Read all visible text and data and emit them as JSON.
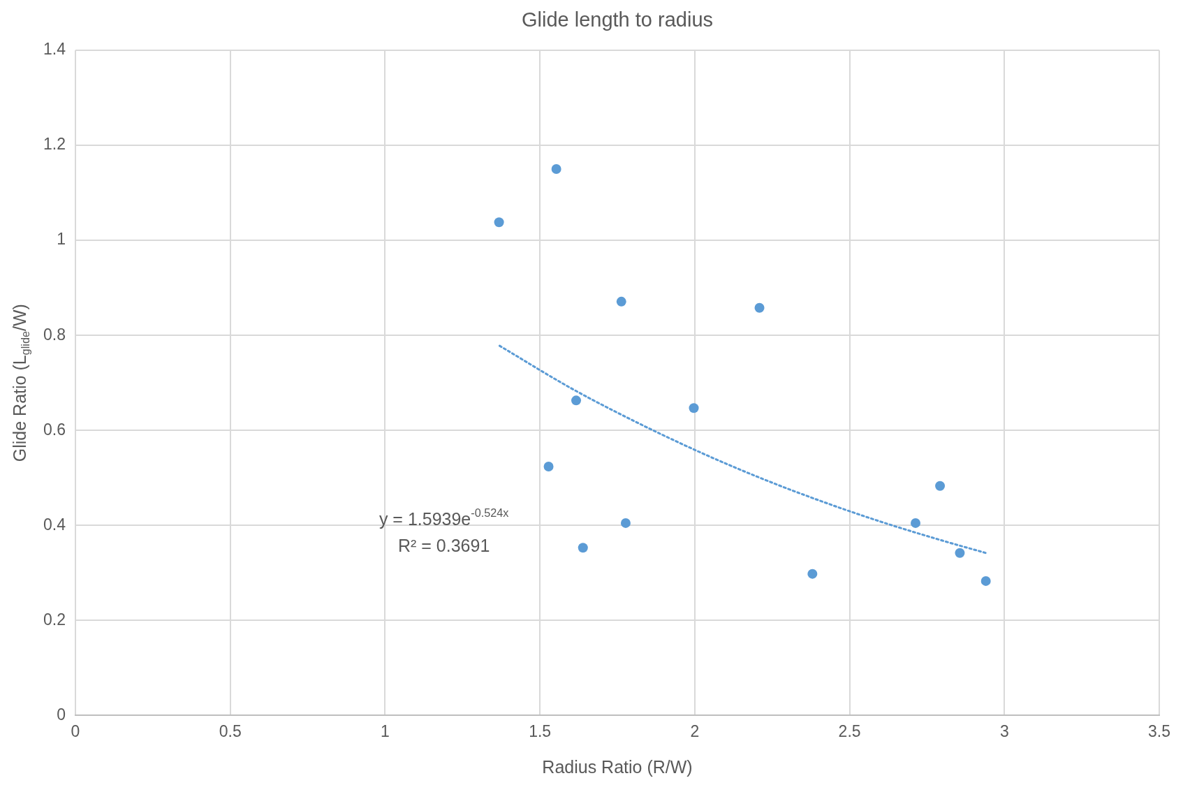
{
  "chart_data": {
    "type": "scatter",
    "title": "Glide length to radius",
    "xlabel": "Radius Ratio (R/W)",
    "ylabel": "Glide Ratio (L$_{glide}$/W)",
    "annotations": [
      "y = 1.5939e$^{-0.524x}$",
      "R² = 0.3691"
    ],
    "series": [
      {
        "color": "#5b9bd5",
        "marker": "circle",
        "x": [
          1.368,
          1.553,
          1.763,
          2.209,
          1.617,
          1.997,
          1.528,
          1.777,
          1.639,
          2.38,
          2.713,
          2.792,
          2.856,
          2.94
        ],
        "values": [
          1.038,
          1.15,
          0.871,
          0.858,
          0.663,
          0.647,
          0.524,
          0.405,
          0.353,
          0.298,
          0.405,
          0.483,
          0.342,
          0.283
        ]
      },
      {
        "type": "line",
        "color": "#5b9bd5",
        "marker": "none",
        "line_style": "dotted",
        "x": [
          1.37,
          1.6,
          1.8,
          2.0,
          2.2,
          2.4,
          2.6,
          2.8,
          2.94
        ],
        "values": [
          0.778,
          0.689,
          0.621,
          0.559,
          0.503,
          0.453,
          0.408,
          0.368,
          0.342
        ]
      }
    ],
    "xlim": [
      0,
      3.5
    ],
    "xticks": [
      0,
      0.5,
      1,
      1.5,
      2,
      2.5,
      3,
      3.5
    ],
    "ylim": [
      0,
      1.4
    ],
    "yticks": [
      0,
      0.2,
      0.4,
      0.6,
      0.8,
      1,
      1.2,
      1.4
    ],
    "grid": true,
    "legend": false
  }
}
